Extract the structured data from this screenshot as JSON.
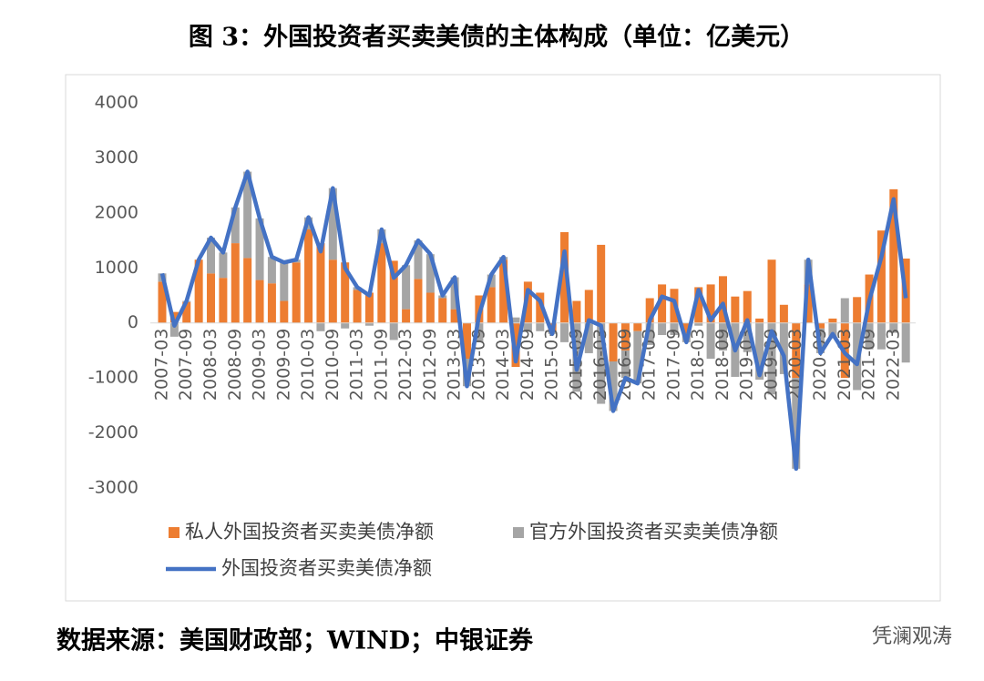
{
  "chart_data": {
    "type": "bar-line",
    "title": "图 3：外国投资者买卖美债的主体构成（单位：亿美元）",
    "source": "数据来源：美国财政部；WIND；中银证券",
    "watermark": "凭澜观涛",
    "categories": [
      "2007-03",
      null,
      "2007-09",
      null,
      "2008-03",
      null,
      "2008-09",
      null,
      "2009-03",
      null,
      "2009-09",
      null,
      "2010-03",
      null,
      "2010-09",
      null,
      "2011-03",
      null,
      "2011-09",
      null,
      "2012-03",
      null,
      "2012-09",
      null,
      "2013-03",
      null,
      "2013-09",
      null,
      "2014-03",
      null,
      "2014-09",
      null,
      "2015-03",
      null,
      "2015-09",
      null,
      "2016-03",
      null,
      "2016-09",
      null,
      "2017-03",
      null,
      "2017-09",
      null,
      "2018-03",
      null,
      "2018-09",
      null,
      "2019-03",
      null,
      "2019-09",
      null,
      "2020-03",
      null,
      "2020-09",
      null,
      "2021-03",
      null,
      "2021-09",
      null,
      "2022-03",
      null
    ],
    "series": [
      {
        "name": "私人外国投资者买卖美债净额",
        "color": "#ed7d31",
        "kind": "bar",
        "values": [
          750,
          200,
          380,
          1150,
          900,
          820,
          1450,
          1180,
          780,
          720,
          400,
          1100,
          1700,
          1450,
          1150,
          1100,
          600,
          550,
          1450,
          1130,
          250,
          800,
          550,
          450,
          250,
          -650,
          500,
          650,
          1150,
          -800,
          750,
          550,
          -150,
          1650,
          400,
          600,
          1420,
          -700,
          -500,
          -150,
          450,
          700,
          620,
          -200,
          650,
          700,
          850,
          480,
          580,
          80,
          1150,
          330,
          -1000,
          700,
          -100,
          80,
          -1000,
          470,
          880,
          1680,
          2430,
          1170
        ]
      },
      {
        "name": "官方外国投资者买卖美债净额",
        "color": "#a5a5a5",
        "kind": "bar",
        "values": [
          150,
          -250,
          20,
          0,
          650,
          460,
          650,
          1570,
          1120,
          480,
          700,
          50,
          220,
          -150,
          1300,
          -100,
          50,
          -50,
          250,
          -310,
          800,
          700,
          700,
          50,
          580,
          -500,
          -350,
          230,
          50,
          100,
          -150,
          -150,
          -50,
          -350,
          -1250,
          -550,
          -1470,
          -900,
          -500,
          -950,
          -400,
          -220,
          -220,
          -150,
          -50,
          -650,
          -500,
          -980,
          -530,
          -1030,
          -1300,
          -930,
          -1650,
          450,
          -450,
          -280,
          450,
          -1220,
          -480,
          -480,
          -180,
          -720
        ]
      },
      {
        "name": "外国投资者买卖美债净额",
        "color": "#4472c4",
        "kind": "line",
        "values": [
          900,
          -50,
          400,
          1150,
          1550,
          1280,
          2100,
          2750,
          1900,
          1200,
          1100,
          1150,
          1920,
          1300,
          2450,
          1000,
          650,
          500,
          1700,
          820,
          1050,
          1500,
          1250,
          500,
          830,
          -1150,
          150,
          880,
          1200,
          -700,
          600,
          400,
          -200,
          1300,
          -850,
          50,
          -50,
          -1600,
          -1000,
          -1100,
          50,
          480,
          400,
          -350,
          600,
          50,
          350,
          -500,
          50,
          -950,
          -150,
          -600,
          -2650,
          1150,
          -550,
          -200,
          -550,
          -750,
          400,
          1200,
          2250,
          450
        ]
      }
    ],
    "ylim": [
      -3000,
      4000
    ],
    "yticks": [
      -3000,
      -2000,
      -1000,
      0,
      1000,
      2000,
      3000,
      4000
    ],
    "grid": false
  }
}
